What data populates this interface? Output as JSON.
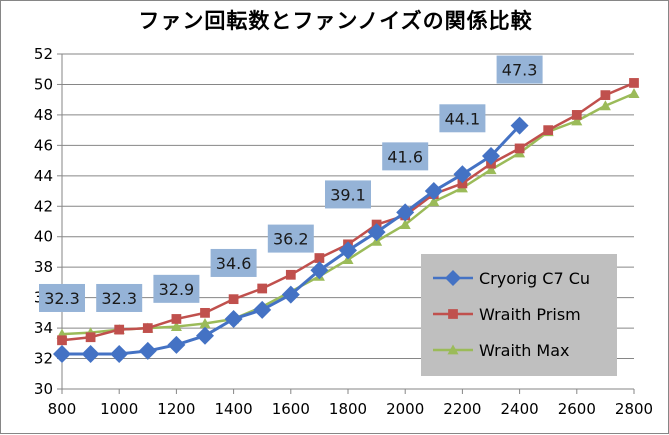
{
  "chart_data": {
    "type": "line",
    "title": "ファン回転数とファンノイズの関係比較",
    "xlabel": "",
    "ylabel": "",
    "xlim": [
      800,
      2800
    ],
    "ylim": [
      30,
      52
    ],
    "x_ticks": [
      800,
      1000,
      1200,
      1400,
      1600,
      1800,
      2000,
      2200,
      2400,
      2600,
      2800
    ],
    "y_ticks": [
      30,
      32,
      34,
      36,
      38,
      40,
      42,
      44,
      46,
      48,
      50,
      52
    ],
    "grid": true,
    "legend_position": "bottom-right",
    "series": [
      {
        "name": "Cryorig C7 Cu",
        "color": "#4472c4",
        "marker": "diamond",
        "x": [
          800,
          900,
          1000,
          1100,
          1200,
          1300,
          1400,
          1500,
          1600,
          1700,
          1800,
          1900,
          2000,
          2100,
          2200,
          2300,
          2400
        ],
        "values": [
          32.3,
          32.3,
          32.3,
          32.5,
          32.9,
          33.5,
          34.6,
          35.2,
          36.2,
          37.8,
          39.1,
          40.3,
          41.6,
          43.0,
          44.1,
          45.3,
          47.3
        ]
      },
      {
        "name": "Wraith Prism",
        "color": "#c0504d",
        "marker": "square",
        "x": [
          800,
          900,
          1000,
          1100,
          1200,
          1300,
          1400,
          1500,
          1600,
          1700,
          1800,
          1900,
          2000,
          2100,
          2200,
          2300,
          2400,
          2500,
          2600,
          2700,
          2800
        ],
        "values": [
          33.2,
          33.4,
          33.9,
          34.0,
          34.6,
          35.0,
          35.9,
          36.6,
          37.5,
          38.6,
          39.5,
          40.8,
          41.4,
          42.8,
          43.5,
          44.8,
          45.8,
          47.0,
          48.0,
          49.3,
          50.1
        ]
      },
      {
        "name": "Wraith Max",
        "color": "#9bbb59",
        "marker": "triangle",
        "x": [
          800,
          900,
          1000,
          1100,
          1200,
          1300,
          1400,
          1500,
          1600,
          1700,
          1800,
          1900,
          2000,
          2100,
          2200,
          2300,
          2400,
          2500,
          2600,
          2700,
          2800
        ],
        "values": [
          33.6,
          33.7,
          33.9,
          34.0,
          34.1,
          34.3,
          34.6,
          35.4,
          36.4,
          37.4,
          38.5,
          39.7,
          40.8,
          42.3,
          43.2,
          44.4,
          45.5,
          46.9,
          47.6,
          48.6,
          49.4
        ]
      }
    ],
    "data_labels": [
      {
        "series": "Cryorig C7 Cu",
        "x": 800,
        "text": "32.3"
      },
      {
        "series": "Cryorig C7 Cu",
        "x": 1000,
        "text": "32.3"
      },
      {
        "series": "Cryorig C7 Cu",
        "x": 1200,
        "text": "32.9"
      },
      {
        "series": "Cryorig C7 Cu",
        "x": 1400,
        "text": "34.6"
      },
      {
        "series": "Cryorig C7 Cu",
        "x": 1600,
        "text": "36.2"
      },
      {
        "series": "Cryorig C7 Cu",
        "x": 1800,
        "text": "39.1"
      },
      {
        "series": "Cryorig C7 Cu",
        "x": 2000,
        "text": "41.6"
      },
      {
        "series": "Cryorig C7 Cu",
        "x": 2200,
        "text": "44.1"
      },
      {
        "series": "Cryorig C7 Cu",
        "x": 2400,
        "text": "47.3"
      }
    ],
    "data_label_fill": "#95b3d7",
    "legend_fill": "#bfbfbf",
    "grid_color": "#868686"
  }
}
